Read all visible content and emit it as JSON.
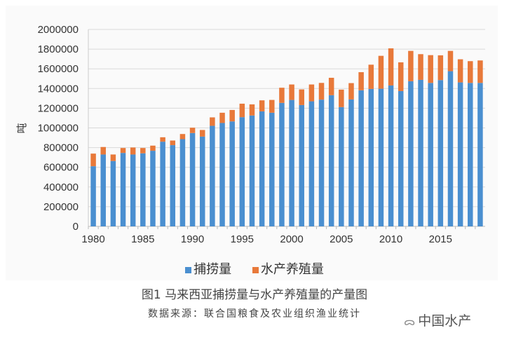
{
  "chart_data": {
    "type": "bar",
    "stacked": true,
    "title": "",
    "xlabel": "",
    "ylabel": "吨",
    "ylim": [
      0,
      2000000
    ],
    "yticks": [
      0,
      200000,
      400000,
      600000,
      800000,
      1000000,
      1200000,
      1400000,
      1600000,
      1800000,
      2000000
    ],
    "xtick_labels": [
      "1980",
      "1985",
      "1990",
      "1995",
      "2000",
      "2005",
      "2010",
      "2015"
    ],
    "grid": true,
    "legend_position": "bottom",
    "categories": [
      1980,
      1981,
      1982,
      1983,
      1984,
      1985,
      1986,
      1987,
      1988,
      1989,
      1990,
      1991,
      1992,
      1993,
      1994,
      1995,
      1996,
      1997,
      1998,
      1999,
      2000,
      2001,
      2002,
      2003,
      2004,
      2005,
      2006,
      2007,
      2008,
      2009,
      2010,
      2011,
      2012,
      2013,
      2014,
      2015,
      2016,
      2017,
      2018,
      2019
    ],
    "series": [
      {
        "name": "捕捞量",
        "color": "#4a8fd0",
        "values": [
          611000,
          730000,
          664000,
          746000,
          730000,
          742000,
          768000,
          860000,
          825000,
          886000,
          948000,
          912000,
          1021000,
          1050000,
          1066000,
          1109000,
          1126000,
          1168000,
          1154000,
          1254000,
          1284000,
          1232000,
          1270000,
          1287000,
          1332000,
          1211000,
          1289000,
          1382000,
          1396000,
          1398000,
          1431000,
          1374000,
          1474000,
          1488000,
          1457000,
          1486000,
          1576000,
          1462000,
          1457000,
          1457000
        ]
      },
      {
        "name": "水产养殖量",
        "color": "#e8793a",
        "values": [
          128000,
          76000,
          66000,
          50000,
          71000,
          54000,
          52000,
          45000,
          47000,
          52000,
          54000,
          67000,
          86000,
          104000,
          116000,
          137000,
          113000,
          112000,
          130000,
          154000,
          157000,
          159000,
          171000,
          170000,
          177000,
          178000,
          166000,
          184000,
          246000,
          334000,
          377000,
          292000,
          308000,
          261000,
          282000,
          251000,
          206000,
          235000,
          221000,
          228000
        ]
      }
    ]
  },
  "caption": "图1 马来西亚捕捞量与水产养殖量的产量图",
  "source": "数据来源：联合国粮食及农业组织渔业统计",
  "watermark": {
    "icon": "wechat-icon",
    "text": "中国水产"
  }
}
